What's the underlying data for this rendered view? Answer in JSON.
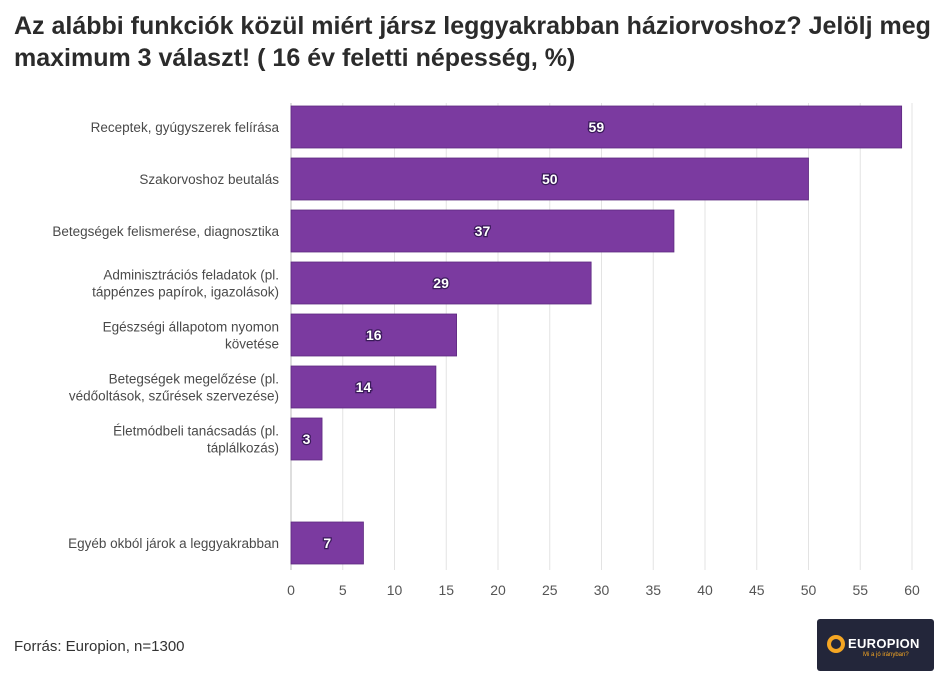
{
  "title": "Az alábbi funkciók közül miért jársz leggyakrabban háziorvoshoz? Jelölj meg maximum 3 választ! ( 16 év feletti népesség, %)",
  "source": "Forrás: Europion, n=1300",
  "logo": {
    "name": "EUROPION",
    "tagline": "Mi a jó irányban?"
  },
  "chart_data": {
    "type": "bar",
    "orientation": "horizontal",
    "categories": [
      [
        "Receptek, gyúgyszerek felírása"
      ],
      [
        "Szakorvoshoz beutalás"
      ],
      [
        "Betegségek felismerése, diagnosztika"
      ],
      [
        "Adminisztrációs feladatok (pl.",
        "táppénzes papírok, igazolások)"
      ],
      [
        "Egészségi állapotom nyomon",
        "követése"
      ],
      [
        "Betegségek megelőzése (pl.",
        "védőoltások, szűrések szervezése)"
      ],
      [
        "Életmódbeli tanácsadás (pl.",
        "táplálkozás)"
      ],
      [
        ""
      ],
      [
        "Egyéb okból járok a leggyakrabban"
      ]
    ],
    "values": [
      59,
      50,
      37,
      29,
      16,
      14,
      3,
      null,
      7
    ],
    "value_labels": [
      "59",
      "50",
      "37",
      "29",
      "16",
      "14",
      "3",
      "",
      "7"
    ],
    "xlim": [
      0,
      60
    ],
    "xticks": [
      0,
      5,
      10,
      15,
      20,
      25,
      30,
      35,
      40,
      45,
      50,
      55,
      60
    ],
    "xlabel": "",
    "ylabel": "",
    "grid": true,
    "legend": "none",
    "colors": {
      "bar": "#7b3aa0",
      "bar_edge": "#5e2a80",
      "grid": "#e3e3e3",
      "axis": "#bdbdbd"
    }
  }
}
